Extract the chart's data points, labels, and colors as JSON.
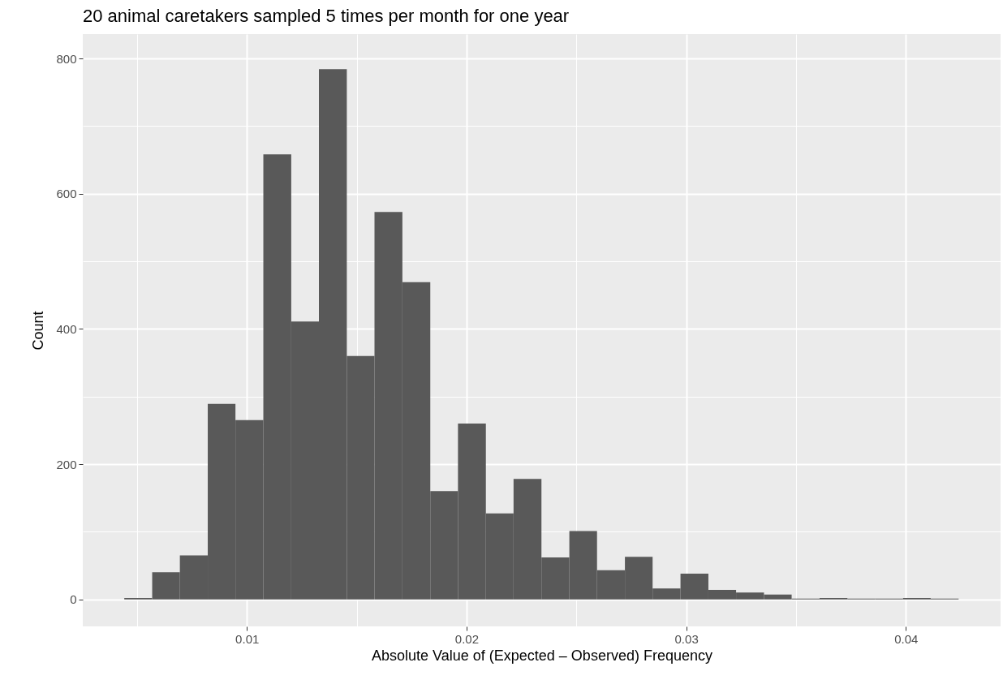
{
  "chart_data": {
    "type": "histogram",
    "title": "20 animal caretakers sampled 5 times per month for one year",
    "xlabel": "Absolute Value of (Expected – Observed) Frequency",
    "ylabel": "Count",
    "bins": [
      0.00442,
      0.00569,
      0.00695,
      0.00822,
      0.00948,
      0.01075,
      0.01202,
      0.01328,
      0.01455,
      0.01581,
      0.01708,
      0.01835,
      0.01961,
      0.02088,
      0.02214,
      0.02341,
      0.02468,
      0.02594,
      0.02721,
      0.02847,
      0.02974,
      0.03101,
      0.03227,
      0.03354,
      0.0348,
      0.03607,
      0.03734,
      0.0386,
      0.03987,
      0.04113,
      0.0424
    ],
    "values": [
      2,
      40,
      65,
      289,
      265,
      658,
      411,
      784,
      360,
      573,
      469,
      160,
      260,
      127,
      178,
      62,
      101,
      43,
      63,
      16,
      38,
      14,
      10,
      7,
      1,
      2,
      1,
      1,
      2,
      1
    ],
    "color": "#595959",
    "xlim": [
      0.00253,
      0.04431
    ],
    "xticks": [
      0.01,
      0.02,
      0.03,
      0.04
    ],
    "ylim": [
      -40,
      836
    ],
    "yticks": [
      0,
      200,
      400,
      600,
      800
    ],
    "grid": true
  }
}
